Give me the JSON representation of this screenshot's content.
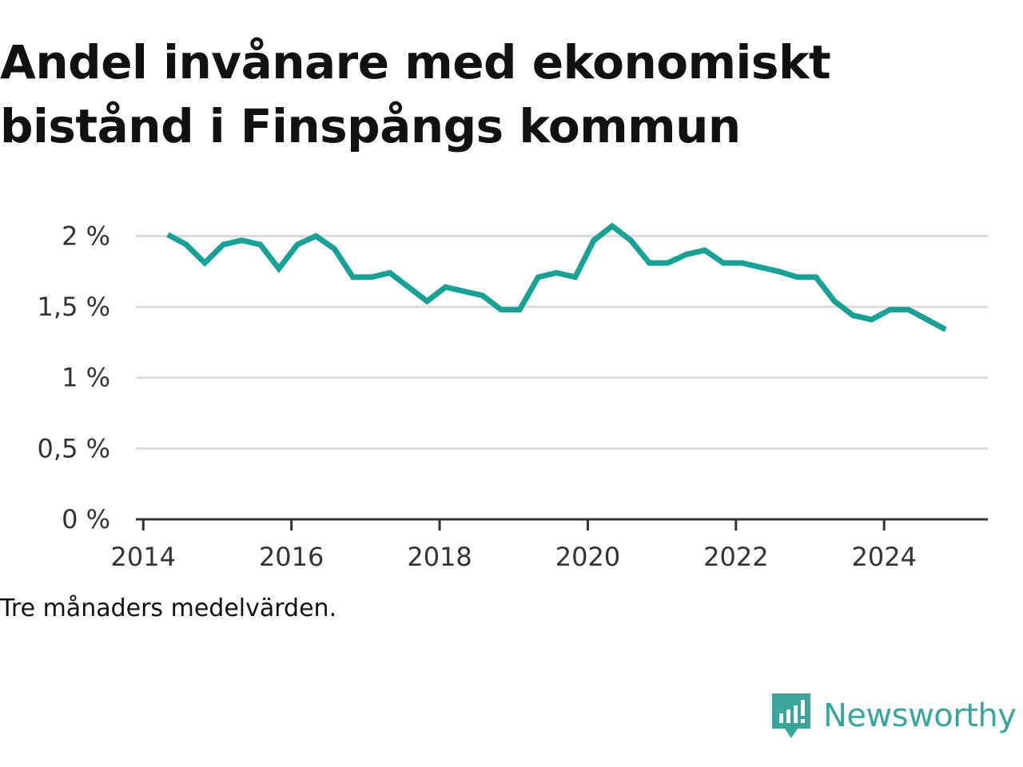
{
  "title": "Andel invånare med ekonomiskt bistånd i Finspångs kommun",
  "note": "Tre månaders medelvärden.",
  "brand": {
    "name": "Newsworthy",
    "icon": "newsworthy-logo-icon",
    "color": "#3aa69a"
  },
  "colors": {
    "line": "#18a296",
    "grid": "#dddddd",
    "axis": "#333333"
  },
  "chart_data": {
    "type": "line",
    "title": "Andel invånare med ekonomiskt bistånd i Finspångs kommun",
    "xlabel": "",
    "ylabel": "",
    "x_ticks": [
      "2014",
      "2016",
      "2018",
      "2020",
      "2022",
      "2024"
    ],
    "y_ticks": [
      "0 %",
      "0,5 %",
      "1 %",
      "1,5 %",
      "2 %"
    ],
    "y_tick_values": [
      0,
      0.5,
      1,
      1.5,
      2
    ],
    "xlim": [
      2013.9,
      2025.4
    ],
    "ylim": [
      0,
      2.2
    ],
    "grid": true,
    "unit": "%",
    "series": [
      {
        "x": [
          2014.33,
          2014.58,
          2014.83,
          2015.08,
          2015.33,
          2015.58,
          2015.83,
          2016.08,
          2016.33,
          2016.58,
          2016.83,
          2017.08,
          2017.33,
          2017.58,
          2017.83,
          2018.08,
          2018.33,
          2018.58,
          2018.83,
          2019.08,
          2019.33,
          2019.58,
          2019.83,
          2020.08,
          2020.33,
          2020.58,
          2020.83,
          2021.08,
          2021.33,
          2021.58,
          2021.83,
          2022.08,
          2022.33,
          2022.58,
          2022.83,
          2023.08,
          2023.33,
          2023.58,
          2023.83,
          2024.08,
          2024.33,
          2024.58,
          2024.83
        ],
        "values": [
          2.01,
          1.94,
          1.81,
          1.94,
          1.97,
          1.94,
          1.77,
          1.94,
          2.0,
          1.91,
          1.71,
          1.71,
          1.74,
          1.64,
          1.54,
          1.64,
          1.61,
          1.58,
          1.48,
          1.48,
          1.71,
          1.74,
          1.71,
          1.97,
          2.07,
          1.97,
          1.81,
          1.81,
          1.87,
          1.9,
          1.81,
          1.81,
          1.78,
          1.75,
          1.71,
          1.71,
          1.54,
          1.44,
          1.41,
          1.48,
          1.48,
          1.41,
          1.34
        ]
      }
    ]
  }
}
